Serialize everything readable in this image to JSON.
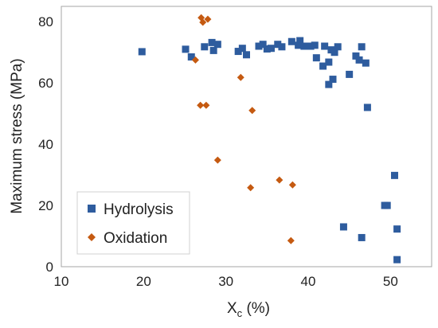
{
  "chart_data": {
    "type": "scatter",
    "xlabel_main": "X",
    "xlabel_sub": "c",
    "xlabel_unit": " (%)",
    "ylabel": "Maximum stress (MPa)",
    "xlim": [
      10,
      55
    ],
    "ylim": [
      0,
      85
    ],
    "x_ticks": [
      10,
      20,
      30,
      40,
      50
    ],
    "y_ticks": [
      0,
      20,
      40,
      60,
      80
    ],
    "grid": false,
    "legend_position": "bottom-left",
    "series": [
      {
        "name": "Hydrolysis",
        "marker": "square",
        "color": "#2e5c9e",
        "points": [
          [
            19.8,
            70.2
          ],
          [
            25.1,
            71.0
          ],
          [
            25.8,
            68.5
          ],
          [
            27.4,
            71.8
          ],
          [
            28.3,
            73.2
          ],
          [
            28.5,
            70.6
          ],
          [
            29.0,
            72.6
          ],
          [
            31.5,
            70.3
          ],
          [
            32.0,
            71.3
          ],
          [
            32.5,
            69.2
          ],
          [
            34.0,
            72.0
          ],
          [
            34.5,
            72.6
          ],
          [
            35.0,
            71.1
          ],
          [
            35.5,
            71.3
          ],
          [
            36.3,
            72.6
          ],
          [
            36.8,
            71.8
          ],
          [
            38.0,
            73.5
          ],
          [
            38.8,
            72.3
          ],
          [
            39.0,
            73.8
          ],
          [
            39.5,
            72.0
          ],
          [
            40.3,
            72.0
          ],
          [
            40.8,
            72.3
          ],
          [
            41.0,
            68.2
          ],
          [
            41.8,
            65.5
          ],
          [
            42.0,
            72.0
          ],
          [
            42.5,
            66.8
          ],
          [
            42.5,
            59.5
          ],
          [
            42.8,
            70.8
          ],
          [
            43.2,
            70.0
          ],
          [
            43.0,
            61.2
          ],
          [
            43.6,
            71.8
          ],
          [
            44.3,
            13.0
          ],
          [
            45.0,
            62.8
          ],
          [
            45.8,
            68.8
          ],
          [
            46.2,
            67.5
          ],
          [
            46.5,
            71.8
          ],
          [
            46.5,
            9.5
          ],
          [
            47.0,
            66.5
          ],
          [
            47.2,
            52.0
          ],
          [
            49.3,
            20.0
          ],
          [
            49.6,
            20.0
          ],
          [
            50.5,
            29.8
          ],
          [
            50.8,
            12.3
          ],
          [
            50.8,
            2.3
          ]
        ]
      },
      {
        "name": "Oxidation",
        "marker": "diamond",
        "color": "#c55a11",
        "points": [
          [
            26.3,
            67.5
          ],
          [
            26.9,
            52.7
          ],
          [
            27.0,
            81.3
          ],
          [
            27.2,
            79.8
          ],
          [
            27.6,
            52.7
          ],
          [
            27.8,
            80.8
          ],
          [
            29.0,
            34.8
          ],
          [
            31.8,
            61.8
          ],
          [
            33.0,
            25.8
          ],
          [
            33.2,
            51.0
          ],
          [
            36.5,
            28.3
          ],
          [
            37.9,
            8.5
          ],
          [
            38.1,
            26.7
          ]
        ]
      }
    ]
  }
}
